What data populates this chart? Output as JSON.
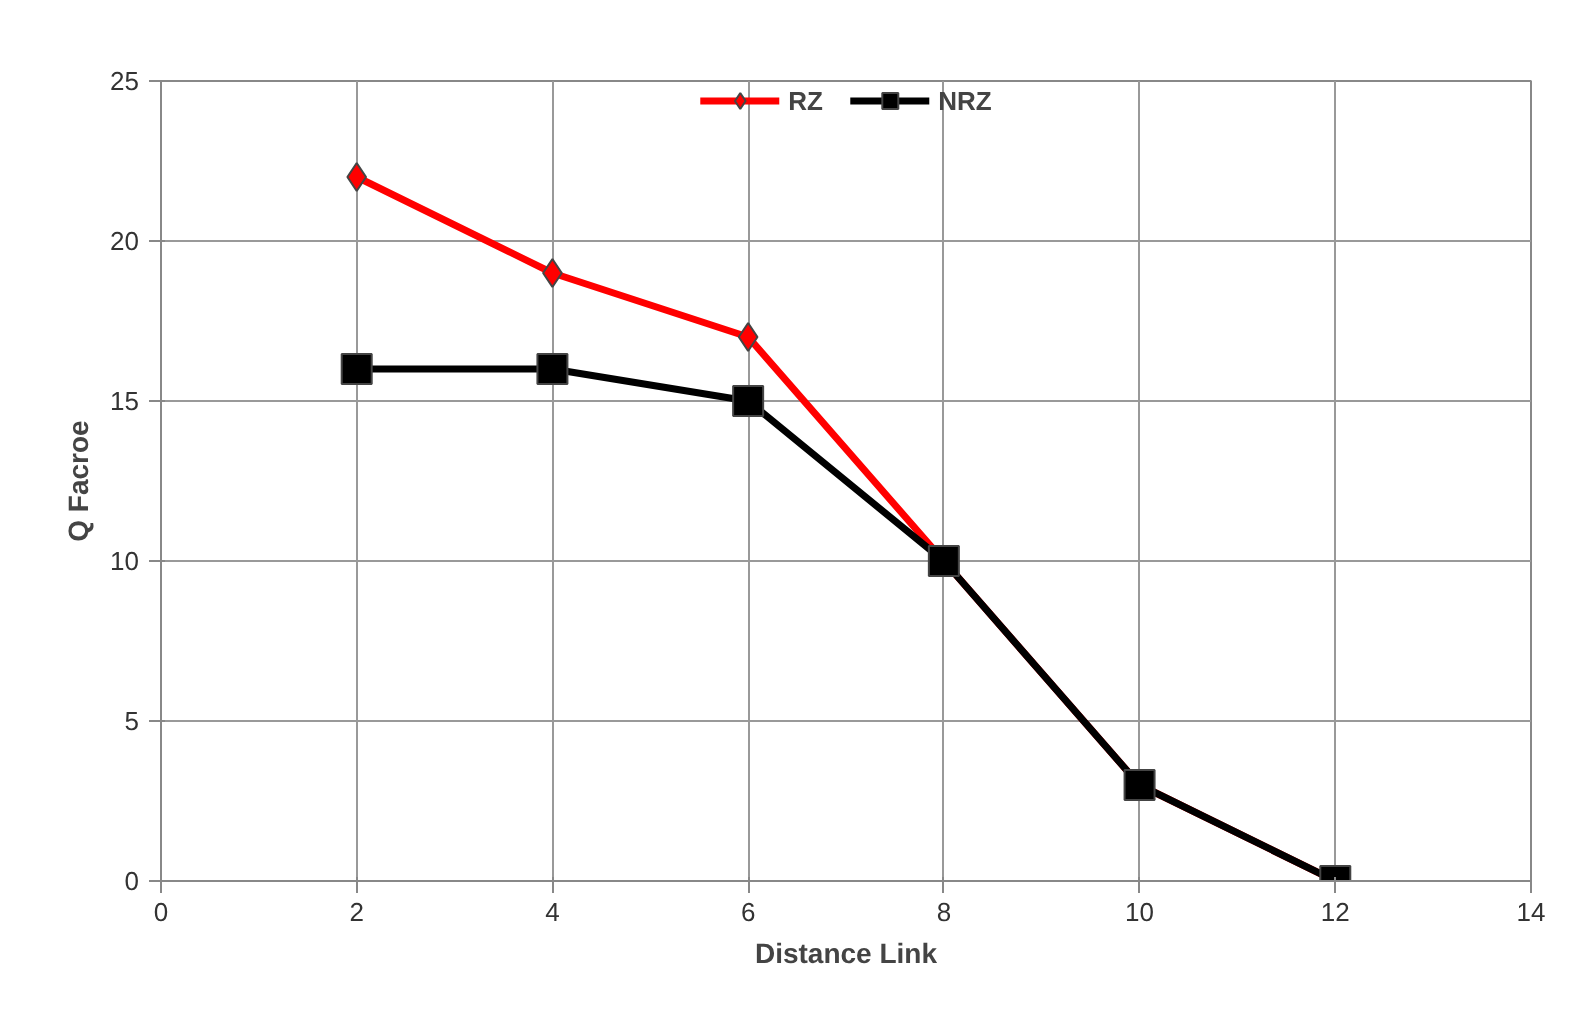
{
  "chart_data": {
    "type": "line",
    "xlabel": "Distance Link",
    "ylabel": "Q Facroe",
    "x": [
      2,
      4,
      6,
      8,
      10,
      12
    ],
    "series": [
      {
        "name": "RZ",
        "color": "#ff0000",
        "marker": "diamond",
        "values": [
          22,
          19,
          17,
          10,
          3,
          0
        ]
      },
      {
        "name": "NRZ",
        "color": "#000000",
        "marker": "square",
        "values": [
          16,
          16,
          15,
          10,
          3,
          0
        ]
      }
    ],
    "xlim": [
      0,
      14
    ],
    "xticks": [
      0,
      2,
      4,
      6,
      8,
      10,
      12,
      14
    ],
    "ylim": [
      0,
      25
    ],
    "yticks": [
      0,
      5,
      10,
      15,
      20,
      25
    ],
    "grid": true,
    "legend": "top",
    "line_style": "solid"
  }
}
